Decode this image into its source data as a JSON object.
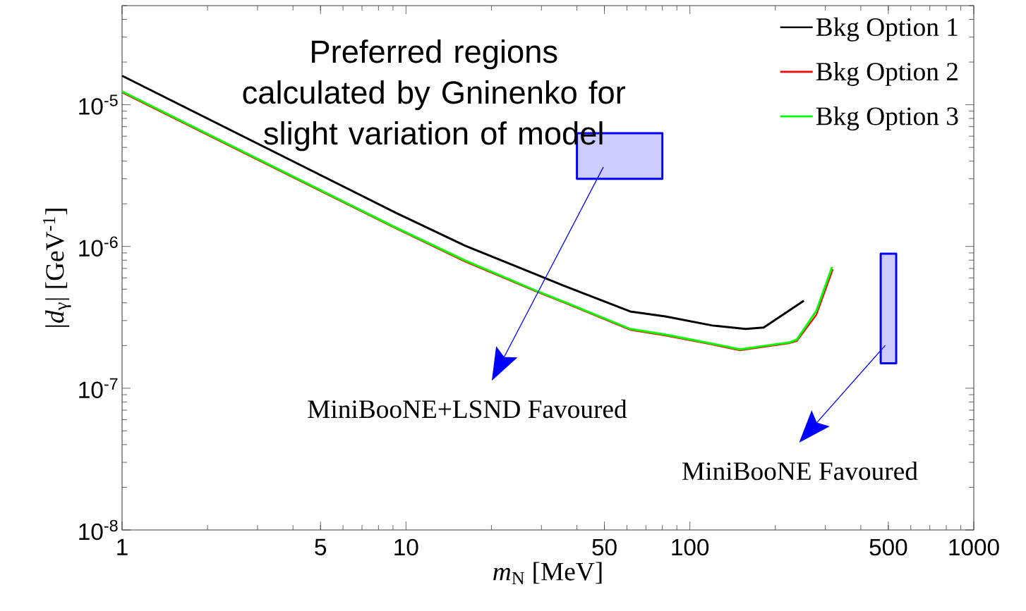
{
  "chart_data": {
    "type": "line",
    "xlabel": "*m*$_{N}$ [MeV]",
    "ylabel": "|*d*$_{γ}$| [GeV$^{-1}$]",
    "annotations": [
      "Preferred regions calculated by Gninenko for slight variation of model",
      "MiniBooNE+LSND Favoured",
      "MiniBooNE Favoured"
    ],
    "series": [
      {
        "name": "Bkg Option 1",
        "color": "#000000",
        "x": [
          1,
          9.2,
          16.2,
          31.0,
          36.2,
          61.6,
          82.0,
          120,
          157,
          182,
          252
        ],
        "values": [
          1.6e-05,
          1.73e-06,
          1.01e-06,
          5.97e-07,
          5.26e-07,
          3.48e-07,
          3.21e-07,
          2.77e-07,
          2.62e-07,
          2.68e-07,
          4.14e-07
        ]
      },
      {
        "name": "Bkg Option 2",
        "color": "#ff0000",
        "x": [
          1,
          9.2,
          16.2,
          28.8,
          36.2,
          61.6,
          82.0,
          120,
          150,
          190,
          223,
          238,
          279,
          319
        ],
        "values": [
          1.22e-05,
          1.34e-06,
          7.8e-07,
          4.8e-07,
          4e-07,
          2.58e-07,
          2.35e-07,
          2.03e-07,
          1.85e-07,
          1.98e-07,
          2.07e-07,
          2.15e-07,
          3.3e-07,
          6.9e-07
        ]
      },
      {
        "name": "Bkg Option 3",
        "color": "#00ff00",
        "x": [
          1,
          9.2,
          16.2,
          28.8,
          36.2,
          61.6,
          82.0,
          120,
          150,
          190,
          223,
          238,
          279,
          317
        ],
        "values": [
          1.24e-05,
          1.36e-06,
          7.94e-07,
          4.86e-07,
          4.05e-07,
          2.62e-07,
          2.39e-07,
          2.06e-07,
          1.88e-07,
          2.01e-07,
          2.1e-07,
          2.2e-07,
          3.52e-07,
          7.18e-07
        ]
      },
      {
        "type": "area",
        "color": "#0000ff",
        "x": [
          40,
          80,
          80,
          40,
          40
        ],
        "values": [
          3e-06,
          3e-06,
          6.3e-06,
          6.3e-06,
          3e-06
        ]
      },
      {
        "type": "area",
        "color": "#0000ff",
        "x": [
          470,
          533,
          533,
          470,
          470
        ],
        "values": [
          1.5e-07,
          1.5e-07,
          8.9e-07,
          8.9e-07,
          1.5e-07
        ]
      }
    ],
    "xlim": [
      1,
      1000
    ],
    "ylim": [
      1e-08,
      5e-05
    ],
    "xticks": [
      1,
      5,
      10,
      50,
      100,
      500,
      1000
    ],
    "yticks": [
      {
        "value": 1e-08,
        "label": "10$^{-8}$"
      },
      {
        "value": 1e-07,
        "label": "10$^{-7}$"
      },
      {
        "value": 1e-06,
        "label": "10$^{-6}$"
      },
      {
        "value": 1e-05,
        "label": "10$^{-5}$"
      }
    ],
    "log": "xy",
    "legend": "top right"
  }
}
